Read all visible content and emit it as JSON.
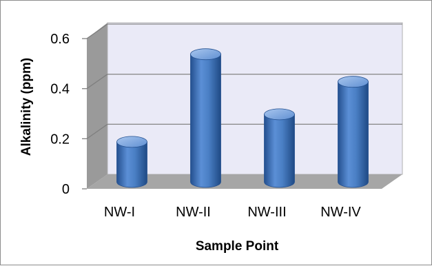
{
  "chart_data": {
    "type": "bar",
    "style": "3d-cylinder",
    "title": "",
    "xlabel": "Sample Point",
    "ylabel": "Alkalinity (ppm)",
    "categories": [
      "NW-I",
      "NW-II",
      "NW-III",
      "NW-IV"
    ],
    "values": [
      0.16,
      0.51,
      0.27,
      0.4
    ],
    "ylim": [
      0,
      0.6
    ],
    "yticks": [
      0,
      0.2,
      0.4,
      0.6
    ],
    "ytick_labels": [
      "0",
      "0.2",
      "0.4",
      "0.6"
    ],
    "grid": true,
    "legend": "none",
    "colors": {
      "bar": "#4a7fc4",
      "bar_dark": "#24508f",
      "bar_light": "#8fb4e6",
      "back_wall": "#eaeaf7",
      "side_wall": "#9a9a9a",
      "floor": "#a6a6a6",
      "gridline": "#8c8c8c"
    }
  }
}
